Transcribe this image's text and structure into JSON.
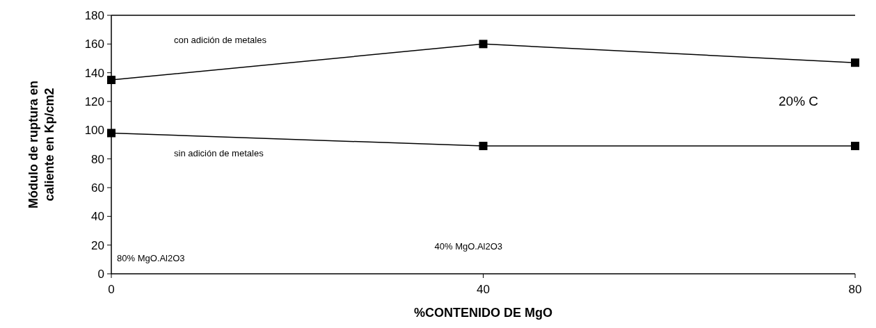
{
  "chart_data": {
    "type": "line",
    "xlabel": "%CONTENIDO DE MgO",
    "ylabel": "Módulo de ruptura en\ncaliente en  Kp/cm2",
    "x": [
      0,
      40,
      80
    ],
    "series": [
      {
        "name": "con adición de metales",
        "color": "#000000",
        "values": [
          135,
          160,
          147
        ]
      },
      {
        "name": "sin adición de metales",
        "color": "#000000",
        "values": [
          98,
          89,
          89
        ]
      }
    ],
    "xlim": [
      0,
      80
    ],
    "xticks": [
      0,
      40,
      80
    ],
    "ylim": [
      0,
      180
    ],
    "yticks": [
      0,
      20,
      40,
      60,
      80,
      100,
      120,
      140,
      160,
      180
    ],
    "marker": "square",
    "line_style": "solid",
    "grid": false,
    "annotations": [
      "20% C",
      "80% MgO.Al2O3",
      "40% MgO.Al2O3"
    ]
  }
}
